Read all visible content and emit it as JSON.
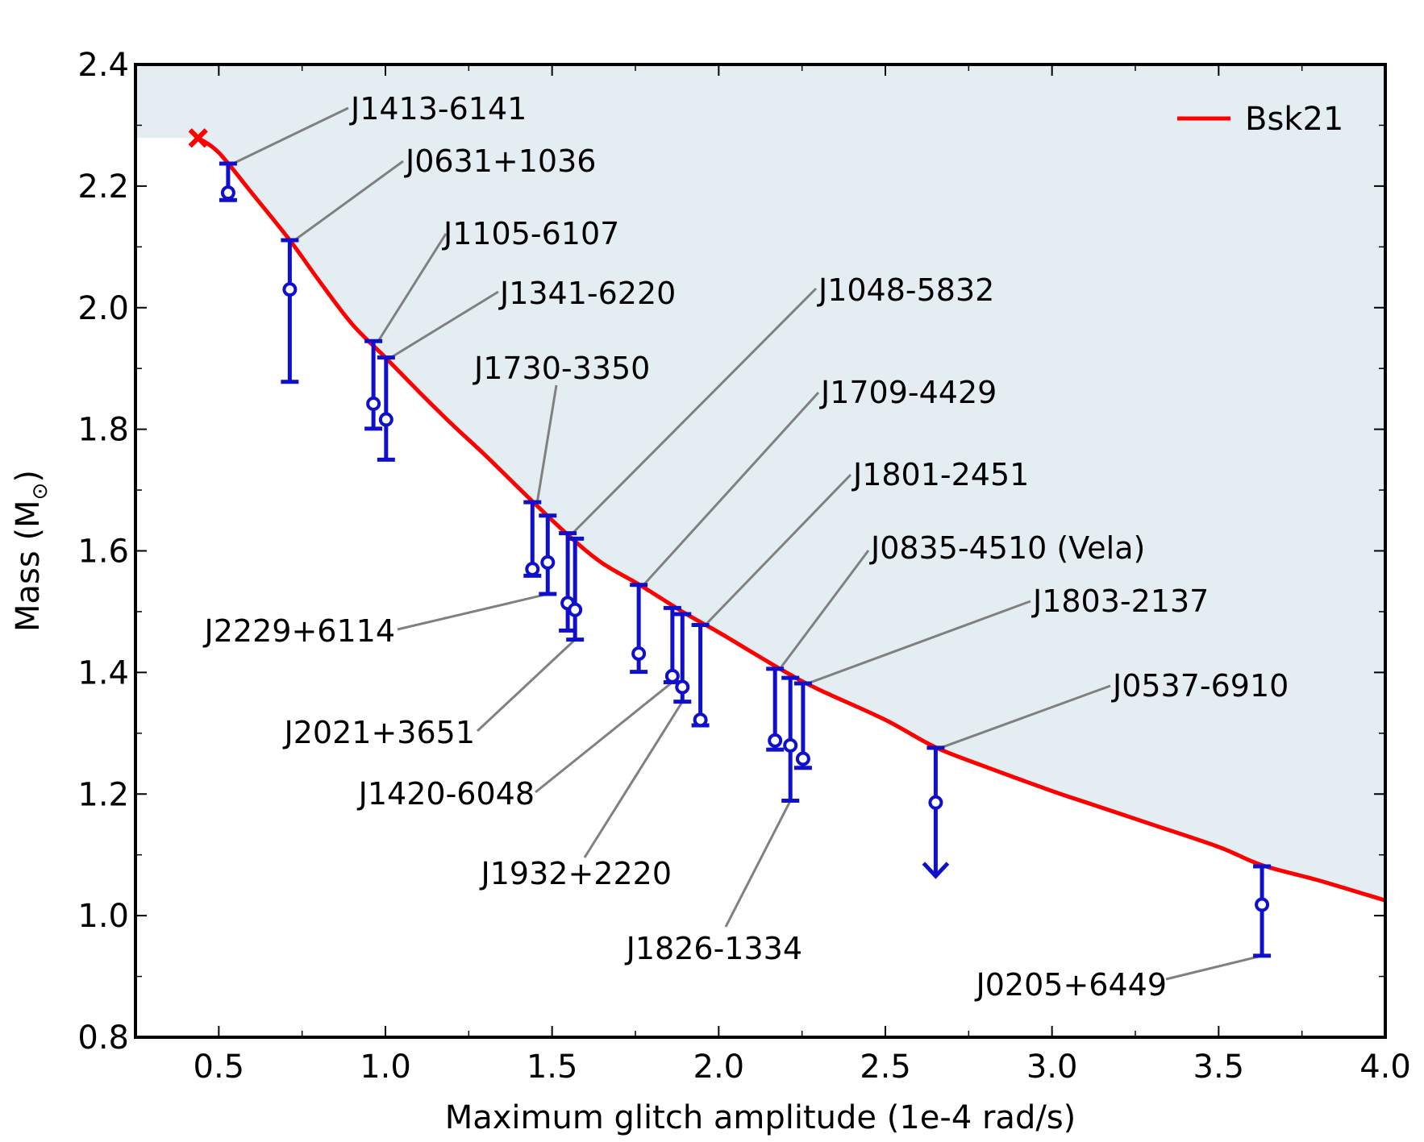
{
  "chart_data": {
    "type": "scatter",
    "title": "",
    "xlabel": "Maximum glitch amplitude (1e-4 rad/s)",
    "ylabel_main": "Mass (M",
    "ylabel_sub": "⊙",
    "ylabel_close": ")",
    "xlim": [
      0.25,
      4.0
    ],
    "ylim": [
      0.8,
      2.4
    ],
    "xticks": [
      0.5,
      1.0,
      1.5,
      2.0,
      2.5,
      3.0,
      3.5,
      4.0
    ],
    "xtick_labels": [
      "0.5",
      "1.0",
      "1.5",
      "2.0",
      "2.5",
      "3.0",
      "3.5",
      "4.0"
    ],
    "xminor": [
      0.75,
      1.25,
      1.75,
      2.25,
      2.75,
      3.25,
      3.75
    ],
    "yticks": [
      0.8,
      1.0,
      1.2,
      1.4,
      1.6,
      1.8,
      2.0,
      2.2,
      2.4
    ],
    "ytick_labels": [
      "0.8",
      "1.0",
      "1.2",
      "1.4",
      "1.6",
      "1.8",
      "2.0",
      "2.2",
      "2.4"
    ],
    "yminor": [
      0.9,
      1.1,
      1.3,
      1.5,
      1.7,
      1.9,
      2.1,
      2.3
    ],
    "grid": false,
    "legend": {
      "position": "top-right",
      "entries": [
        {
          "label": "Bsk21",
          "color": "#ff0000"
        }
      ]
    },
    "colors": {
      "curve": "#ff0000",
      "points": "#1010cc",
      "shade": "#e4eef2",
      "leader": "#808080"
    },
    "curve": {
      "name": "Bsk21",
      "x": [
        0.438,
        0.5,
        0.6,
        0.713,
        0.8,
        0.9,
        1.0,
        1.1,
        1.2,
        1.3,
        1.44,
        1.55,
        1.65,
        1.76,
        1.9,
        2.0,
        2.19,
        2.3,
        2.5,
        2.65,
        2.8,
        3.0,
        3.12,
        3.3,
        3.5,
        3.63,
        3.8,
        4.0
      ],
      "y": [
        2.279,
        2.255,
        2.188,
        2.111,
        2.045,
        1.973,
        1.918,
        1.862,
        1.808,
        1.757,
        1.682,
        1.625,
        1.58,
        1.545,
        1.497,
        1.466,
        1.404,
        1.372,
        1.322,
        1.277,
        1.245,
        1.205,
        1.183,
        1.15,
        1.113,
        1.083,
        1.058,
        1.025
      ]
    },
    "endpoint_marker": {
      "x": 0.438,
      "y": 2.279,
      "symbol": "x"
    },
    "shaded_region": "above curve (excluded), plus band above y=2.279 for x<0.438",
    "points": [
      {
        "name": "J1413-6141",
        "x": 0.528,
        "y": 2.189,
        "upper": 2.237,
        "lower": 2.177,
        "upper_limit": false
      },
      {
        "name": "J0631+1036",
        "x": 0.713,
        "y": 2.03,
        "upper": 2.111,
        "lower": 1.878,
        "upper_limit": false
      },
      {
        "name": "J1105-6107",
        "x": 0.964,
        "y": 1.842,
        "upper": 1.945,
        "lower": 1.801,
        "upper_limit": false
      },
      {
        "name": "J1341-6220",
        "x": 1.002,
        "y": 1.816,
        "upper": 1.918,
        "lower": 1.75,
        "upper_limit": false
      },
      {
        "name": "J1730-3350",
        "x": 1.441,
        "y": 1.57,
        "upper": 1.68,
        "lower": 1.559,
        "upper_limit": false
      },
      {
        "name": "J2229+6114",
        "x": 1.487,
        "y": 1.581,
        "upper": 1.658,
        "lower": 1.529,
        "upper_limit": false
      },
      {
        "name": "J1048-5832",
        "x": 1.547,
        "y": 1.514,
        "upper": 1.629,
        "lower": 1.469,
        "upper_limit": false
      },
      {
        "name": "J2021+3651",
        "x": 1.569,
        "y": 1.503,
        "upper": 1.62,
        "lower": 1.454,
        "upper_limit": false
      },
      {
        "name": "J1709-4429",
        "x": 1.76,
        "y": 1.431,
        "upper": 1.544,
        "lower": 1.401,
        "upper_limit": false
      },
      {
        "name": "J1420-6048",
        "x": 1.861,
        "y": 1.394,
        "upper": 1.506,
        "lower": 1.384,
        "upper_limit": false
      },
      {
        "name": "J1932+2220",
        "x": 1.891,
        "y": 1.376,
        "upper": 1.496,
        "lower": 1.352,
        "upper_limit": false
      },
      {
        "name": "J1801-2451",
        "x": 1.945,
        "y": 1.322,
        "upper": 1.478,
        "lower": 1.313,
        "upper_limit": false
      },
      {
        "name": "J0835-4510 (Vela)",
        "x": 2.169,
        "y": 1.288,
        "upper": 1.406,
        "lower": 1.273,
        "upper_limit": false
      },
      {
        "name": "J1826-1334",
        "x": 2.215,
        "y": 1.28,
        "upper": 1.391,
        "lower": 1.189,
        "upper_limit": false
      },
      {
        "name": "J1803-2137",
        "x": 2.253,
        "y": 1.258,
        "upper": 1.382,
        "lower": 1.243,
        "upper_limit": false
      },
      {
        "name": "J0537-6910",
        "x": 2.651,
        "y": 1.186,
        "upper": 1.276,
        "lower": 1.065,
        "upper_limit": true
      },
      {
        "name": "J0205+6449",
        "x": 3.63,
        "y": 1.018,
        "upper": 1.081,
        "lower": 0.934,
        "upper_limit": false
      }
    ]
  }
}
